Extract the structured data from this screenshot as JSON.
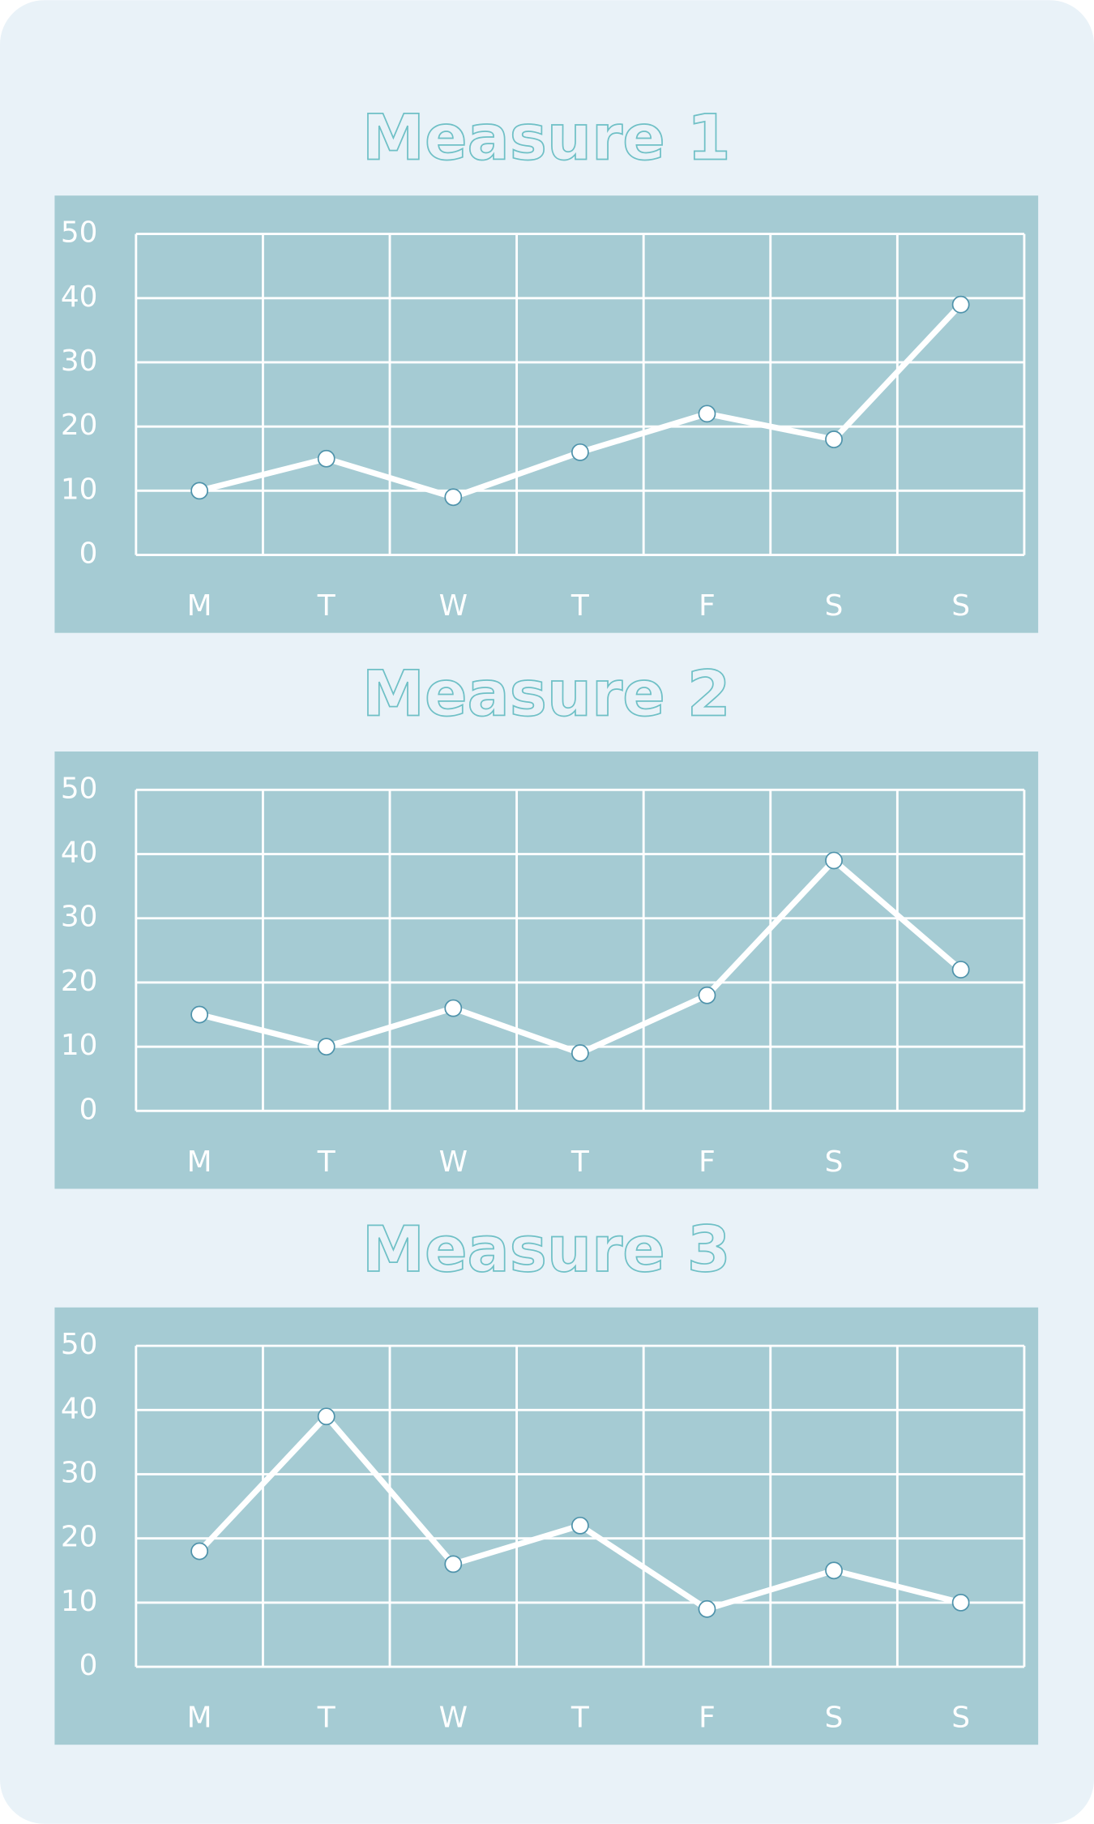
{
  "chart_data": [
    {
      "type": "line",
      "title": "Measure 1",
      "categories": [
        "M",
        "T",
        "W",
        "T",
        "F",
        "S",
        "S"
      ],
      "values": [
        10,
        15,
        9,
        16,
        22,
        18,
        39
      ],
      "color": "#ffffff",
      "ylim": [
        0,
        50
      ],
      "yticks": [
        0,
        10,
        20,
        30,
        40,
        50
      ],
      "grid": true
    },
    {
      "type": "line",
      "title": "Measure 2",
      "categories": [
        "M",
        "T",
        "W",
        "T",
        "F",
        "S",
        "S"
      ],
      "values": [
        15,
        10,
        16,
        9,
        18,
        39,
        22
      ],
      "color": "#ffffff",
      "ylim": [
        0,
        50
      ],
      "yticks": [
        0,
        10,
        20,
        30,
        40,
        50
      ],
      "grid": true
    },
    {
      "type": "line",
      "title": "Measure 3",
      "categories": [
        "M",
        "T",
        "W",
        "T",
        "F",
        "S",
        "S"
      ],
      "values": [
        18,
        39,
        16,
        22,
        9,
        15,
        10
      ],
      "color": "#ffffff",
      "ylim": [
        0,
        50
      ],
      "yticks": [
        0,
        10,
        20,
        30,
        40,
        50
      ],
      "grid": true
    }
  ]
}
